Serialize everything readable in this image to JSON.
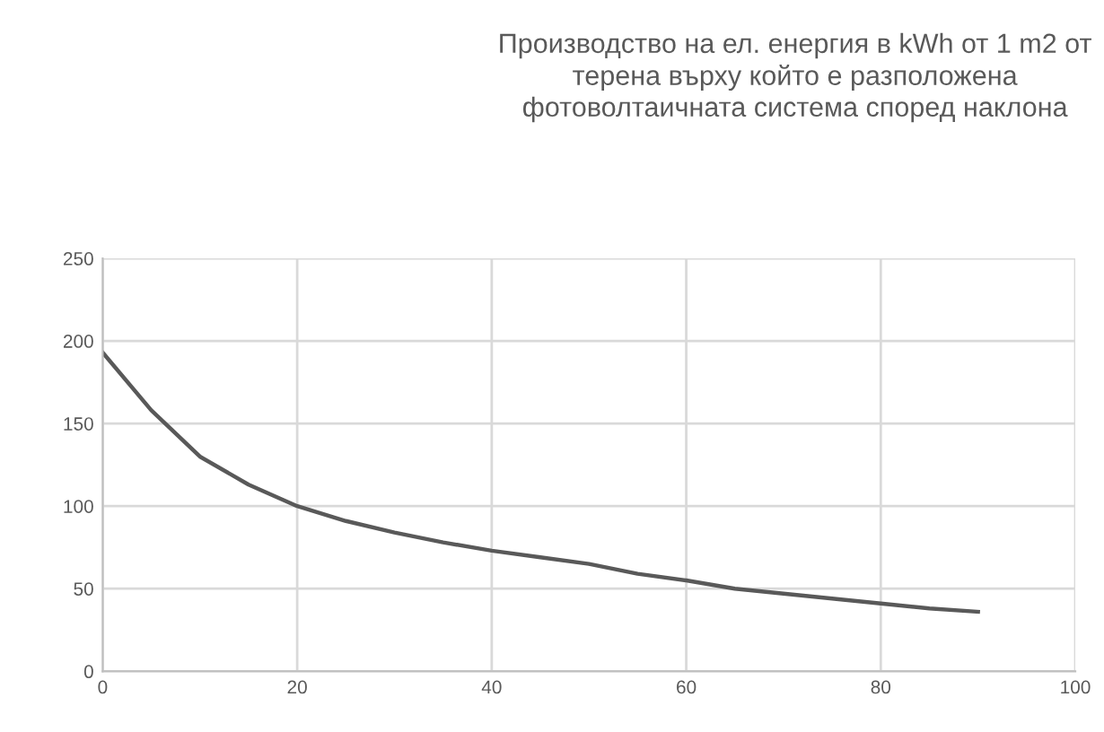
{
  "chart_data": {
    "type": "line",
    "title": "Производство на ел. енергия в kWh от 1 m2 от\nтерена върху който е разположена\nфотоволтаичната система според наклона",
    "x": [
      0,
      5,
      10,
      15,
      20,
      25,
      30,
      35,
      40,
      45,
      50,
      55,
      60,
      65,
      70,
      75,
      80,
      85,
      90
    ],
    "series": [
      {
        "color": "#595959",
        "values": [
          193,
          158,
          130,
          113,
          100,
          91,
          84,
          78,
          73,
          69,
          65,
          59,
          55,
          50,
          47,
          44,
          41,
          38,
          36
        ]
      }
    ],
    "xlim": [
      0,
      100
    ],
    "xticks": [
      0,
      20,
      40,
      60,
      80,
      100
    ],
    "ylim": [
      0,
      250
    ],
    "yticks": [
      0,
      50,
      100,
      150,
      200,
      250
    ],
    "grid": true,
    "marker": "none",
    "line_style": "solid"
  }
}
